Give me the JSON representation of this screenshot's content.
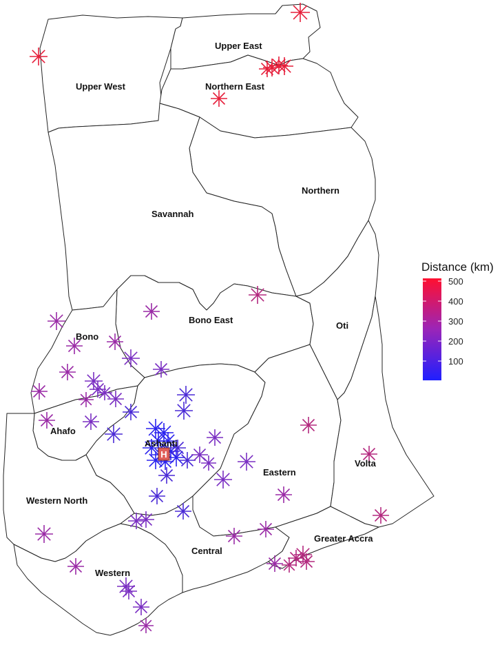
{
  "map": {
    "regions": [
      {
        "name": "Upper West"
      },
      {
        "name": "Upper East"
      },
      {
        "name": "Northern East"
      },
      {
        "name": "Northern"
      },
      {
        "name": "Savannah"
      },
      {
        "name": "Bono East"
      },
      {
        "name": "Oti"
      },
      {
        "name": "Bono"
      },
      {
        "name": "Ahafo"
      },
      {
        "name": "Ashanti"
      },
      {
        "name": "Eastern"
      },
      {
        "name": "Volta"
      },
      {
        "name": "Western North"
      },
      {
        "name": "Central"
      },
      {
        "name": "Greater Accra"
      },
      {
        "name": "Western"
      }
    ],
    "hub_marker": "H",
    "legend": {
      "title": "Distance (km)",
      "ticks": [
        "500",
        "400",
        "300",
        "200",
        "100"
      ],
      "colors": {
        "low": "#1f1fff",
        "high": "#ff1030"
      }
    },
    "marker_colors": {
      "near": "#2a22ee",
      "mid_blue": "#4a2ad6",
      "mid": "#7a2ec2",
      "far_purple": "#9a2aa6",
      "magenta": "#b3287e",
      "red": "#e61e3a"
    }
  }
}
